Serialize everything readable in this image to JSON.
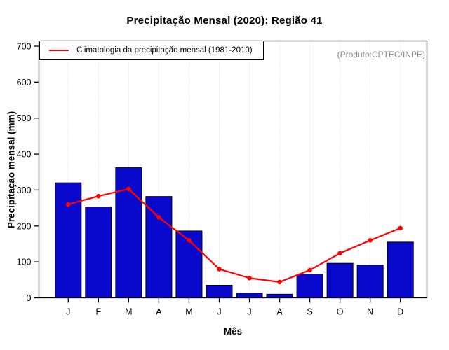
{
  "title": "Precipitação Mensal (2020): Região 41",
  "watermark": "(Produto:CPTEC/INPE)",
  "legend": {
    "label": "Climatologia da precipitação mensal (1981-2010)"
  },
  "axes": {
    "x_label": "Mês",
    "y_label": "Precipitação mensal (mm)"
  },
  "colors": {
    "bar_fill": "#0909ce",
    "bar_border": "#000000",
    "line": "#ff0000",
    "grid": "#d9d9d9",
    "axis": "#000000",
    "watermark_text": "#8c8c8c"
  },
  "chart_data": {
    "type": "bar",
    "title": "Precipitação Mensal (2020): Região 41",
    "xlabel": "Mês",
    "ylabel": "Precipitação mensal (mm)",
    "categories": [
      "J",
      "F",
      "M",
      "A",
      "M",
      "J",
      "J",
      "A",
      "S",
      "O",
      "N",
      "D"
    ],
    "series": [
      {
        "name": "Precipitação mensal 2020",
        "type": "bar",
        "color": "#0909ce",
        "values": [
          320,
          253,
          362,
          282,
          186,
          35,
          13,
          10,
          66,
          96,
          91,
          155
        ]
      },
      {
        "name": "Climatologia da precipitação mensal (1981-2010)",
        "type": "line",
        "color": "#ff0000",
        "values": [
          260,
          283,
          303,
          224,
          160,
          80,
          55,
          44,
          77,
          124,
          160,
          194
        ]
      }
    ],
    "ylim": [
      0,
      700
    ],
    "yticks": [
      0,
      100,
      200,
      300,
      400,
      500,
      600,
      700
    ],
    "grid": "vertical-dotted",
    "legend_position": "top-left"
  }
}
